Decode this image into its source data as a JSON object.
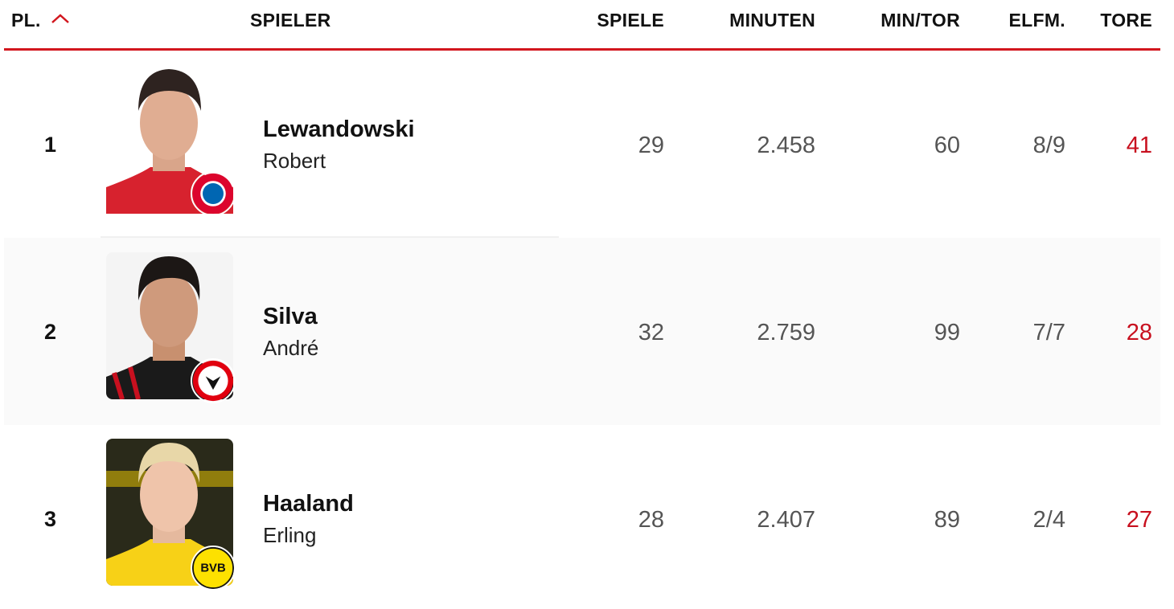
{
  "header": {
    "rank": "PL.",
    "player": "SPIELER",
    "games": "SPIELE",
    "minutes": "MINUTEN",
    "min_per_goal": "MIN/TOR",
    "penalties": "ELFM.",
    "goals": "TORE",
    "sort_icon": "chevron-up-icon",
    "accent_color": "#d2161e"
  },
  "rows": [
    {
      "rank": "1",
      "last": "Lewandowski",
      "first": "Robert",
      "club": "FC Bayern München",
      "games": "29",
      "minutes": "2.458",
      "min_per_goal": "60",
      "penalties": "8/9",
      "goals": "41"
    },
    {
      "rank": "2",
      "last": "Silva",
      "first": "André",
      "club": "Eintracht Frankfurt",
      "games": "32",
      "minutes": "2.759",
      "min_per_goal": "99",
      "penalties": "7/7",
      "goals": "28"
    },
    {
      "rank": "3",
      "last": "Haaland",
      "first": "Erling",
      "club": "Borussia Dortmund",
      "games": "28",
      "minutes": "2.407",
      "min_per_goal": "89",
      "penalties": "2/4",
      "goals": "27"
    }
  ]
}
